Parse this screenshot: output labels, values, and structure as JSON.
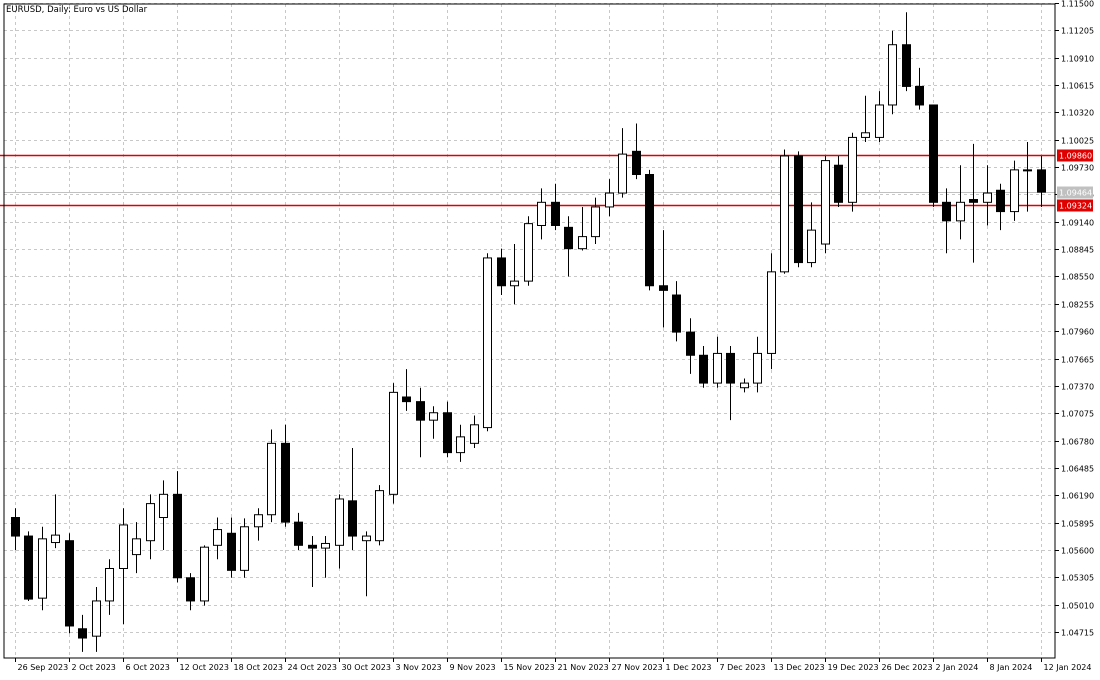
{
  "chart_data": {
    "type": "candlestick",
    "title": "EURUSD, Daily:  Euro vs US Dollar",
    "ylim": [
      1.04,
      1.115
    ],
    "grid": true,
    "colors": {
      "background": "#ffffff",
      "grid": "#c8c8c8",
      "candle_outline": "#000000",
      "bull_fill": "#ffffff",
      "bear_fill": "#000000",
      "level_line": "#e00000",
      "level_label_bg": "#e00000",
      "price_label_bg": "#c0c0c0"
    },
    "y_ticks": [
      "1.11500",
      "1.11205",
      "1.10910",
      "1.10615",
      "1.10320",
      "1.10025",
      "1.09730",
      "1.09435",
      "1.09140",
      "1.08845",
      "1.08550",
      "1.08255",
      "1.07960",
      "1.07665",
      "1.07370",
      "1.07075",
      "1.06780",
      "1.06485",
      "1.06190",
      "1.05895",
      "1.05600",
      "1.05305",
      "1.05010",
      "1.04715"
    ],
    "x_labels": [
      {
        "i": 0,
        "label": "26 Sep 2023"
      },
      {
        "i": 4,
        "label": "2 Oct 2023"
      },
      {
        "i": 8,
        "label": "6 Oct 2023"
      },
      {
        "i": 12,
        "label": "12 Oct 2023"
      },
      {
        "i": 16,
        "label": "18 Oct 2023"
      },
      {
        "i": 20,
        "label": "24 Oct 2023"
      },
      {
        "i": 24,
        "label": "30 Oct 2023"
      },
      {
        "i": 28,
        "label": "3 Nov 2023"
      },
      {
        "i": 32,
        "label": "9 Nov 2023"
      },
      {
        "i": 36,
        "label": "15 Nov 2023"
      },
      {
        "i": 40,
        "label": "21 Nov 2023"
      },
      {
        "i": 44,
        "label": "27 Nov 2023"
      },
      {
        "i": 48,
        "label": "1 Dec 2023"
      },
      {
        "i": 52,
        "label": "7 Dec 2023"
      },
      {
        "i": 56,
        "label": "13 Dec 2023"
      },
      {
        "i": 60,
        "label": "19 Dec 2023"
      },
      {
        "i": 64,
        "label": "26 Dec 2023"
      },
      {
        "i": 68,
        "label": "2 Jan 2024"
      },
      {
        "i": 72,
        "label": "8 Jan 2024"
      },
      {
        "i": 76,
        "label": "12 Jan 2024"
      }
    ],
    "levels": [
      {
        "price": 1.0986,
        "label": "1.09860"
      },
      {
        "price": 1.09324,
        "label": "1.09324"
      }
    ],
    "current_price": {
      "price": 1.09464,
      "label": "1.09464"
    },
    "candles": [
      {
        "o": 1.0595,
        "h": 1.0605,
        "l": 1.056,
        "c": 1.0575
      },
      {
        "o": 1.0575,
        "h": 1.058,
        "l": 1.0505,
        "c": 1.0507
      },
      {
        "o": 1.0508,
        "h": 1.0585,
        "l": 1.0495,
        "c": 1.0572
      },
      {
        "o": 1.0568,
        "h": 1.062,
        "l": 1.0562,
        "c": 1.0576
      },
      {
        "o": 1.057,
        "h": 1.0578,
        "l": 1.047,
        "c": 1.0478
      },
      {
        "o": 1.0475,
        "h": 1.049,
        "l": 1.045,
        "c": 1.0465
      },
      {
        "o": 1.0467,
        "h": 1.052,
        "l": 1.045,
        "c": 1.0505
      },
      {
        "o": 1.0505,
        "h": 1.055,
        "l": 1.049,
        "c": 1.054
      },
      {
        "o": 1.054,
        "h": 1.0605,
        "l": 1.048,
        "c": 1.0587
      },
      {
        "o": 1.0555,
        "h": 1.059,
        "l": 1.0535,
        "c": 1.0572
      },
      {
        "o": 1.057,
        "h": 1.062,
        "l": 1.055,
        "c": 1.061
      },
      {
        "o": 1.0595,
        "h": 1.0635,
        "l": 1.056,
        "c": 1.062
      },
      {
        "o": 1.062,
        "h": 1.0645,
        "l": 1.0525,
        "c": 1.053
      },
      {
        "o": 1.053,
        "h": 1.0535,
        "l": 1.0495,
        "c": 1.0505
      },
      {
        "o": 1.0505,
        "h": 1.0565,
        "l": 1.05,
        "c": 1.0563
      },
      {
        "o": 1.0565,
        "h": 1.0595,
        "l": 1.055,
        "c": 1.0582
      },
      {
        "o": 1.0578,
        "h": 1.0595,
        "l": 1.053,
        "c": 1.0538
      },
      {
        "o": 1.0538,
        "h": 1.0594,
        "l": 1.053,
        "c": 1.0585
      },
      {
        "o": 1.0585,
        "h": 1.0605,
        "l": 1.057,
        "c": 1.0598
      },
      {
        "o": 1.0598,
        "h": 1.069,
        "l": 1.059,
        "c": 1.0675
      },
      {
        "o": 1.0675,
        "h": 1.0695,
        "l": 1.0585,
        "c": 1.059
      },
      {
        "o": 1.059,
        "h": 1.06,
        "l": 1.056,
        "c": 1.0565
      },
      {
        "o": 1.0565,
        "h": 1.0575,
        "l": 1.052,
        "c": 1.0562
      },
      {
        "o": 1.0562,
        "h": 1.0575,
        "l": 1.053,
        "c": 1.0567
      },
      {
        "o": 1.0565,
        "h": 1.062,
        "l": 1.054,
        "c": 1.0615
      },
      {
        "o": 1.0613,
        "h": 1.067,
        "l": 1.056,
        "c": 1.0575
      },
      {
        "o": 1.057,
        "h": 1.058,
        "l": 1.051,
        "c": 1.0575
      },
      {
        "o": 1.057,
        "h": 1.063,
        "l": 1.0565,
        "c": 1.0624
      },
      {
        "o": 1.062,
        "h": 1.074,
        "l": 1.061,
        "c": 1.073
      },
      {
        "o": 1.0725,
        "h": 1.0755,
        "l": 1.071,
        "c": 1.072
      },
      {
        "o": 1.072,
        "h": 1.0735,
        "l": 1.066,
        "c": 1.07
      },
      {
        "o": 1.07,
        "h": 1.0715,
        "l": 1.068,
        "c": 1.0708
      },
      {
        "o": 1.0708,
        "h": 1.072,
        "l": 1.066,
        "c": 1.0665
      },
      {
        "o": 1.0665,
        "h": 1.0695,
        "l": 1.0655,
        "c": 1.0682
      },
      {
        "o": 1.0675,
        "h": 1.0705,
        "l": 1.067,
        "c": 1.0695
      },
      {
        "o": 1.0692,
        "h": 1.088,
        "l": 1.0688,
        "c": 1.0875
      },
      {
        "o": 1.0875,
        "h": 1.0885,
        "l": 1.0835,
        "c": 1.0845
      },
      {
        "o": 1.0845,
        "h": 1.089,
        "l": 1.0825,
        "c": 1.085
      },
      {
        "o": 1.085,
        "h": 1.092,
        "l": 1.0845,
        "c": 1.0912
      },
      {
        "o": 1.091,
        "h": 1.095,
        "l": 1.0895,
        "c": 1.0935
      },
      {
        "o": 1.0935,
        "h": 1.0955,
        "l": 1.0905,
        "c": 1.091
      },
      {
        "o": 1.0908,
        "h": 1.092,
        "l": 1.0855,
        "c": 1.0885
      },
      {
        "o": 1.0885,
        "h": 1.093,
        "l": 1.0883,
        "c": 1.0898
      },
      {
        "o": 1.0898,
        "h": 1.094,
        "l": 1.089,
        "c": 1.093
      },
      {
        "o": 1.093,
        "h": 1.096,
        "l": 1.092,
        "c": 1.0945
      },
      {
        "o": 1.0945,
        "h": 1.1015,
        "l": 1.094,
        "c": 1.0987
      },
      {
        "o": 1.099,
        "h": 1.102,
        "l": 1.096,
        "c": 1.0965
      },
      {
        "o": 1.0965,
        "h": 1.097,
        "l": 1.084,
        "c": 1.0845
      },
      {
        "o": 1.0845,
        "h": 1.0905,
        "l": 1.08,
        "c": 1.084
      },
      {
        "o": 1.0835,
        "h": 1.085,
        "l": 1.0785,
        "c": 1.0795
      },
      {
        "o": 1.0795,
        "h": 1.081,
        "l": 1.075,
        "c": 1.077
      },
      {
        "o": 1.077,
        "h": 1.078,
        "l": 1.0735,
        "c": 1.074
      },
      {
        "o": 1.074,
        "h": 1.079,
        "l": 1.0735,
        "c": 1.0772
      },
      {
        "o": 1.0772,
        "h": 1.078,
        "l": 1.07,
        "c": 1.074
      },
      {
        "o": 1.0735,
        "h": 1.0745,
        "l": 1.073,
        "c": 1.074
      },
      {
        "o": 1.074,
        "h": 1.079,
        "l": 1.073,
        "c": 1.0772
      },
      {
        "o": 1.0772,
        "h": 1.088,
        "l": 1.0755,
        "c": 1.086
      },
      {
        "o": 1.086,
        "h": 1.0992,
        "l": 1.0858,
        "c": 1.0985
      },
      {
        "o": 1.0985,
        "h": 1.099,
        "l": 1.0865,
        "c": 1.087
      },
      {
        "o": 1.087,
        "h": 1.0935,
        "l": 1.0865,
        "c": 1.0905
      },
      {
        "o": 1.089,
        "h": 1.0985,
        "l": 1.088,
        "c": 1.098
      },
      {
        "o": 1.0975,
        "h": 1.0985,
        "l": 1.093,
        "c": 1.0935
      },
      {
        "o": 1.0935,
        "h": 1.101,
        "l": 1.0925,
        "c": 1.1005
      },
      {
        "o": 1.1005,
        "h": 1.105,
        "l": 1.1,
        "c": 1.101
      },
      {
        "o": 1.1005,
        "h": 1.1055,
        "l": 1.1,
        "c": 1.104
      },
      {
        "o": 1.104,
        "h": 1.112,
        "l": 1.103,
        "c": 1.1105
      },
      {
        "o": 1.1105,
        "h": 1.114,
        "l": 1.1055,
        "c": 1.106
      },
      {
        "o": 1.106,
        "h": 1.108,
        "l": 1.1035,
        "c": 1.104
      },
      {
        "o": 1.104,
        "h": 1.104,
        "l": 1.093,
        "c": 1.0935
      },
      {
        "o": 1.0935,
        "h": 1.095,
        "l": 1.088,
        "c": 1.0915
      },
      {
        "o": 1.0915,
        "h": 1.0975,
        "l": 1.0895,
        "c": 1.0935
      },
      {
        "o": 1.0938,
        "h": 1.0998,
        "l": 1.087,
        "c": 1.0935
      },
      {
        "o": 1.0935,
        "h": 1.0975,
        "l": 1.091,
        "c": 1.0945
      },
      {
        "o": 1.0948,
        "h": 1.0955,
        "l": 1.0905,
        "c": 1.0925
      },
      {
        "o": 1.0925,
        "h": 1.098,
        "l": 1.0915,
        "c": 1.097
      },
      {
        "o": 1.097,
        "h": 1.1,
        "l": 1.0925,
        "c": 1.097
      },
      {
        "o": 1.097,
        "h": 1.0985,
        "l": 1.093,
        "c": 1.0946
      }
    ]
  }
}
